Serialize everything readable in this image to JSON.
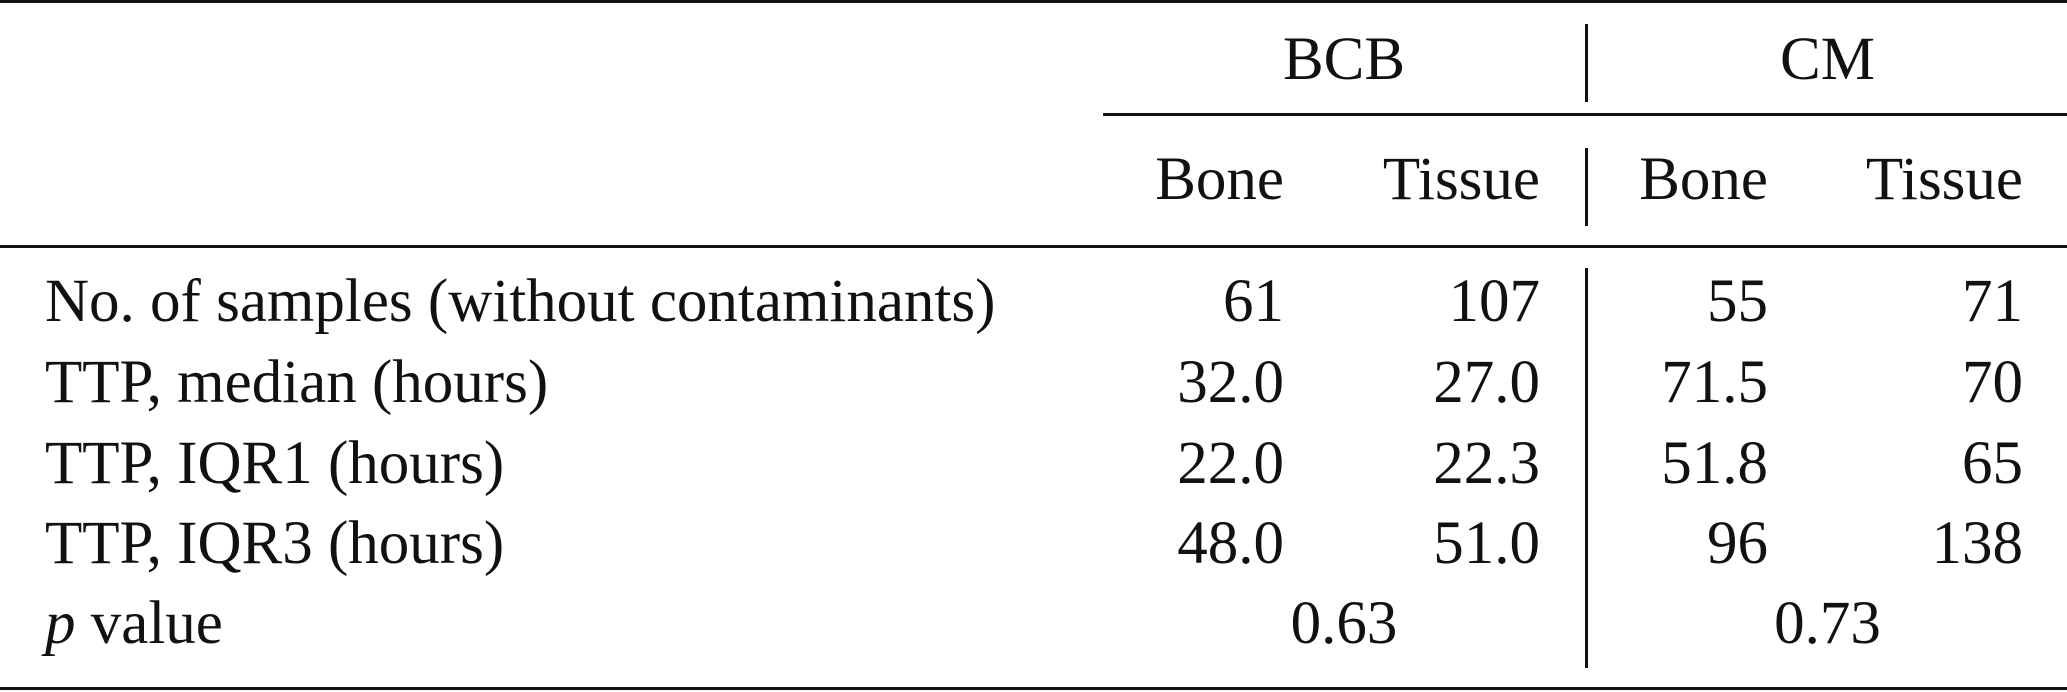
{
  "table": {
    "groups": [
      {
        "label": "BCB"
      },
      {
        "label": "CM"
      }
    ],
    "subheaders": [
      "Bone",
      "Tissue",
      "Bone",
      "Tissue"
    ],
    "rows": [
      {
        "label": "No. of samples (without contaminants)",
        "values": [
          "61",
          "107",
          "55",
          "71"
        ]
      },
      {
        "label": "TTP, median (hours)",
        "values": [
          "32.0",
          "27.0",
          "71.5",
          "70"
        ]
      },
      {
        "label": "TTP, IQR1 (hours)",
        "values": [
          "22.0",
          "22.3",
          "51.8",
          "65"
        ]
      },
      {
        "label": "TTP, IQR3 (hours)",
        "values": [
          "48.0",
          "51.0",
          "96",
          "138"
        ]
      }
    ],
    "pvalue_row": {
      "label_italic": "p",
      "label_rest": " value",
      "values": [
        "0.63",
        "0.73"
      ]
    }
  }
}
